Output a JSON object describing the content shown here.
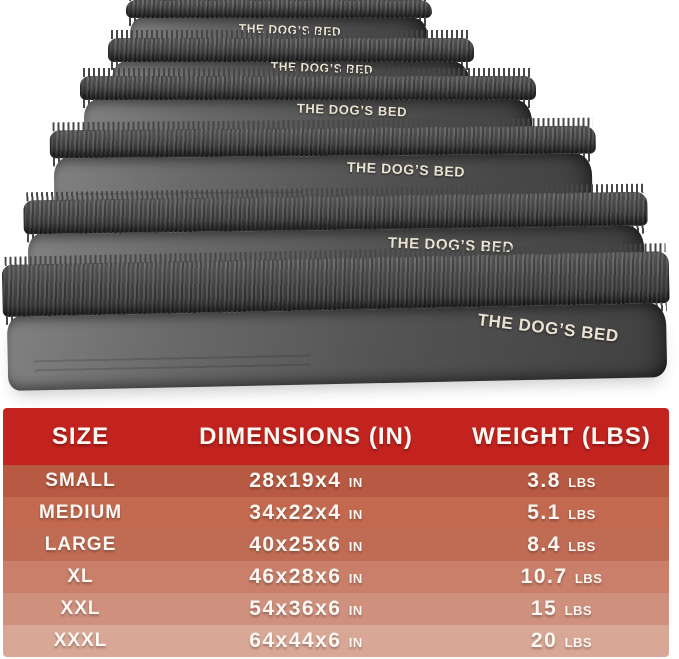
{
  "product": {
    "brand_label": "THE DOG’S BED"
  },
  "chart_data": {
    "type": "table",
    "columns": [
      "SIZE",
      "DIMENSIONS (IN)",
      "WEIGHT (LBS)"
    ],
    "rows": [
      {
        "size": "SMALL",
        "dimensions": "28x19x4",
        "dim_unit": "IN",
        "weight": "3.8",
        "weight_unit": "LBS"
      },
      {
        "size": "MEDIUM",
        "dimensions": "34x22x4",
        "dim_unit": "IN",
        "weight": "5.1",
        "weight_unit": "LBS"
      },
      {
        "size": "LARGE",
        "dimensions": "40x25x6",
        "dim_unit": "IN",
        "weight": "8.4",
        "weight_unit": "LBS"
      },
      {
        "size": "XL",
        "dimensions": "46x28x6",
        "dim_unit": "IN",
        "weight": "10.7",
        "weight_unit": "LBS"
      },
      {
        "size": "XXL",
        "dimensions": "54x36x6",
        "dim_unit": "IN",
        "weight": "15",
        "weight_unit": "LBS"
      },
      {
        "size": "XXXL",
        "dimensions": "64x44x6",
        "dim_unit": "IN",
        "weight": "20",
        "weight_unit": "LBS"
      }
    ],
    "colors": {
      "header_bg": "#c2231e",
      "header_text": "#fdf8f3",
      "row_text": "#fdf8f3",
      "row_bgs": [
        "#b85a43",
        "#c26950",
        "#c06c55",
        "#c97f69",
        "#cf907e",
        "#d9a795"
      ]
    }
  }
}
